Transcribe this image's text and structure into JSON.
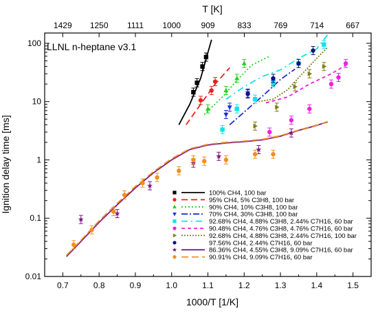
{
  "chart_data": {
    "type": "scatter",
    "title": "",
    "annotation": "LLNL n-heptane v3.1",
    "xlabel": "1000/T [1/K]",
    "ylabel": "Ignition delay time [ms]",
    "top_xlabel": "T [K]",
    "xlim": [
      0.65,
      1.55
    ],
    "ylim": [
      0.01,
      150
    ],
    "yscale": "log",
    "grid": false,
    "legend_position": "bottom-right",
    "x_ticks": [
      "0.7",
      "0.8",
      "0.9",
      "1.0",
      "1.1",
      "1.2",
      "1.3",
      "1.4",
      "1.5"
    ],
    "x_tick_values": [
      0.7,
      0.8,
      0.9,
      1.0,
      1.1,
      1.2,
      1.3,
      1.4,
      1.5
    ],
    "y_ticks": [
      "0.01",
      "0.1",
      "1",
      "10",
      "100"
    ],
    "y_tick_values": [
      0.01,
      0.1,
      1,
      10,
      100
    ],
    "top_ticks": [
      "1429",
      "1250",
      "1111",
      "1000",
      "909",
      "833",
      "769",
      "714",
      "667"
    ],
    "series": [
      {
        "name": "100% CH4, 100 bar",
        "color": "#000000",
        "marker": "square",
        "dash": "",
        "points": [
          [
            1.06,
            14.5
          ],
          [
            1.07,
            21.0
          ],
          [
            1.085,
            40.0
          ],
          [
            1.095,
            58.0
          ]
        ],
        "line": [
          [
            1.02,
            4.0
          ],
          [
            1.05,
            9.0
          ],
          [
            1.08,
            25.0
          ],
          [
            1.11,
            115.0
          ]
        ]
      },
      {
        "name": "95% CH4, 5% C3H8, 100 bar",
        "color": "#e8201c",
        "marker": "circle",
        "dash": "9,5",
        "points": [
          [
            1.08,
            10.5
          ],
          [
            1.11,
            15.5
          ],
          [
            1.12,
            22.0
          ]
        ],
        "line": [
          [
            1.04,
            4.0
          ],
          [
            1.08,
            9.0
          ],
          [
            1.12,
            20.0
          ],
          [
            1.16,
            38.0
          ]
        ]
      },
      {
        "name": "90% CH4, 10% C3H8, 100 bar",
        "color": "#22d01e",
        "marker": "triangle-up",
        "dash": "2,3",
        "points": [
          [
            1.1,
            7.5
          ],
          [
            1.15,
            15.5
          ],
          [
            1.18,
            25.0
          ],
          [
            1.2,
            45.0
          ]
        ],
        "line": [
          [
            1.09,
            6.0
          ],
          [
            1.14,
            12.0
          ],
          [
            1.18,
            23.0
          ],
          [
            1.22,
            42.0
          ],
          [
            1.27,
            60.0
          ]
        ]
      },
      {
        "name": "70% CH4, 30% C3H8, 100 bar",
        "color": "#1c2ed0",
        "marker": "triangle-down",
        "dash": "9,3,2,3",
        "points": [
          [
            1.15,
            6.0
          ],
          [
            1.16,
            8.0
          ],
          [
            1.21,
            14.0
          ],
          [
            1.28,
            22.0
          ]
        ],
        "line": [
          [
            1.16,
            4.0
          ],
          [
            1.21,
            7.5
          ],
          [
            1.26,
            14.0
          ],
          [
            1.3,
            24.0
          ],
          [
            1.34,
            36.0
          ]
        ]
      },
      {
        "name": "92.68% CH4, 4.88% C3H8, 2.44% C7H16, 60 bar",
        "color": "#12e4e4",
        "marker": "square",
        "dash": "9,5,2,5",
        "points": [
          [
            1.14,
            3.3
          ],
          [
            1.18,
            7.5
          ],
          [
            1.23,
            11.0
          ],
          [
            1.28,
            21.0
          ],
          [
            1.35,
            45.0
          ],
          [
            1.42,
            95.0
          ]
        ],
        "line": [
          [
            1.15,
            11.0
          ],
          [
            1.2,
            18.0
          ],
          [
            1.25,
            27.0
          ],
          [
            1.3,
            35.0
          ],
          [
            1.35,
            55.0
          ],
          [
            1.4,
            80.0
          ],
          [
            1.43,
            140.0
          ]
        ]
      },
      {
        "name": "90.48% CH4, 4.76% C3H8, 4.76% C7H16, 60 bar",
        "color": "#ee20dc",
        "marker": "circle",
        "dash": "5,4",
        "points": [
          [
            1.27,
            3.0
          ],
          [
            1.33,
            4.8
          ],
          [
            1.38,
            7.5
          ],
          [
            1.44,
            20.0
          ],
          [
            1.46,
            26.0
          ],
          [
            1.48,
            45.0
          ]
        ],
        "line": [
          [
            1.26,
            9.5
          ],
          [
            1.32,
            12.0
          ],
          [
            1.38,
            20.0
          ],
          [
            1.44,
            30.0
          ],
          [
            1.48,
            42.0
          ]
        ]
      },
      {
        "name": "92.68% CH4, 4.88% C3H8, 2.44% C7H16, 100 bar",
        "color": "#7f7f14",
        "marker": "triangle-right",
        "dash": "2,2",
        "points": [
          [
            1.23,
            3.8
          ],
          [
            1.29,
            8.0
          ],
          [
            1.34,
            18.0
          ],
          [
            1.38,
            30.0
          ],
          [
            1.42,
            40.0
          ]
        ],
        "line": [
          [
            1.24,
            10.0
          ],
          [
            1.28,
            11.0
          ],
          [
            1.32,
            16.0
          ],
          [
            1.36,
            30.0
          ],
          [
            1.4,
            55.0
          ],
          [
            1.43,
            85.0
          ]
        ]
      },
      {
        "name": "97.56% CH4, 2.44% C7H16, 60 bar",
        "color": "#12127a",
        "marker": "circle",
        "dash": "",
        "points": [
          [
            1.21,
            13.5
          ],
          [
            1.28,
            25.0
          ],
          [
            1.35,
            45.0
          ],
          [
            1.39,
            75.0
          ]
        ],
        "line": []
      },
      {
        "name": "86.36% CH4, 4.55% C3H8, 9.09% C7H16, 60 bar",
        "color": "#7e1a82",
        "marker": "star",
        "dash": "",
        "points": [
          [
            0.75,
            0.095
          ],
          [
            0.85,
            0.12
          ],
          [
            0.94,
            0.36
          ],
          [
            1.06,
            0.88
          ],
          [
            1.13,
            1.15
          ],
          [
            1.24,
            1.5
          ],
          [
            1.33,
            2.9
          ]
        ],
        "line": [
          [
            0.71,
            0.022
          ],
          [
            0.75,
            0.04
          ],
          [
            0.8,
            0.085
          ],
          [
            0.85,
            0.17
          ],
          [
            0.9,
            0.33
          ],
          [
            0.95,
            0.6
          ],
          [
            1.0,
            1.0
          ],
          [
            1.05,
            1.5
          ],
          [
            1.1,
            1.8
          ],
          [
            1.15,
            1.95
          ],
          [
            1.2,
            2.05
          ],
          [
            1.25,
            2.2
          ],
          [
            1.3,
            2.55
          ],
          [
            1.35,
            3.2
          ],
          [
            1.4,
            3.9
          ],
          [
            1.43,
            4.5
          ]
        ]
      },
      {
        "name": "90.91% CH4, 9.09% C7H16, 60 bar",
        "color": "#f0901c",
        "marker": "circle",
        "dash": "10,5",
        "points": [
          [
            0.73,
            0.035
          ],
          [
            0.78,
            0.063
          ],
          [
            0.84,
            0.13
          ],
          [
            0.87,
            0.25
          ],
          [
            0.92,
            0.4
          ],
          [
            0.96,
            0.5
          ],
          [
            1.02,
            0.65
          ],
          [
            1.06,
            1.0
          ],
          [
            1.09,
            0.95
          ],
          [
            1.15,
            1.0
          ],
          [
            1.23,
            1.25
          ],
          [
            1.28,
            1.25
          ]
        ],
        "line": [
          [
            0.71,
            0.023
          ],
          [
            0.75,
            0.042
          ],
          [
            0.8,
            0.09
          ],
          [
            0.85,
            0.18
          ],
          [
            0.9,
            0.35
          ],
          [
            0.95,
            0.63
          ],
          [
            1.0,
            1.05
          ],
          [
            1.05,
            1.55
          ],
          [
            1.1,
            1.85
          ],
          [
            1.15,
            2.0
          ],
          [
            1.2,
            2.1
          ],
          [
            1.25,
            2.25
          ],
          [
            1.3,
            2.6
          ],
          [
            1.35,
            3.25
          ],
          [
            1.4,
            3.95
          ],
          [
            1.43,
            4.4
          ]
        ]
      }
    ]
  }
}
